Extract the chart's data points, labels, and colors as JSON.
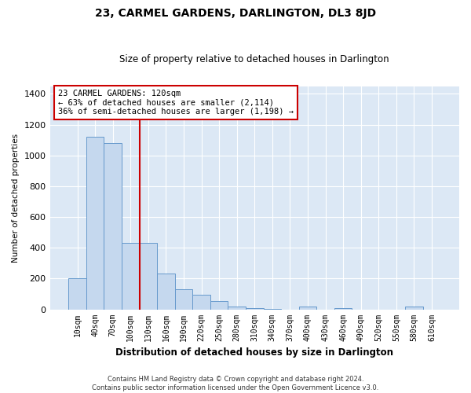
{
  "title": "23, CARMEL GARDENS, DARLINGTON, DL3 8JD",
  "subtitle": "Size of property relative to detached houses in Darlington",
  "xlabel": "Distribution of detached houses by size in Darlington",
  "ylabel": "Number of detached properties",
  "footer_line1": "Contains HM Land Registry data © Crown copyright and database right 2024.",
  "footer_line2": "Contains public sector information licensed under the Open Government Licence v3.0.",
  "annotation_line1": "23 CARMEL GARDENS: 120sqm",
  "annotation_line2": "← 63% of detached houses are smaller (2,114)",
  "annotation_line3": "36% of semi-detached houses are larger (1,198) →",
  "bar_color": "#c5d8ee",
  "bar_edge_color": "#6699cc",
  "marker_color": "#cc0000",
  "annotation_box_color": "#cc0000",
  "background_color": "#dce8f5",
  "categories": [
    "10sqm",
    "40sqm",
    "70sqm",
    "100sqm",
    "130sqm",
    "160sqm",
    "190sqm",
    "220sqm",
    "250sqm",
    "280sqm",
    "310sqm",
    "340sqm",
    "370sqm",
    "400sqm",
    "430sqm",
    "460sqm",
    "490sqm",
    "520sqm",
    "550sqm",
    "580sqm",
    "610sqm"
  ],
  "values": [
    200,
    1120,
    1080,
    430,
    430,
    235,
    130,
    95,
    55,
    20,
    8,
    5,
    0,
    18,
    0,
    8,
    0,
    0,
    0,
    20,
    0
  ],
  "ylim": [
    0,
    1450
  ],
  "yticks": [
    0,
    200,
    400,
    600,
    800,
    1000,
    1200,
    1400
  ],
  "property_line_x": 3.5
}
